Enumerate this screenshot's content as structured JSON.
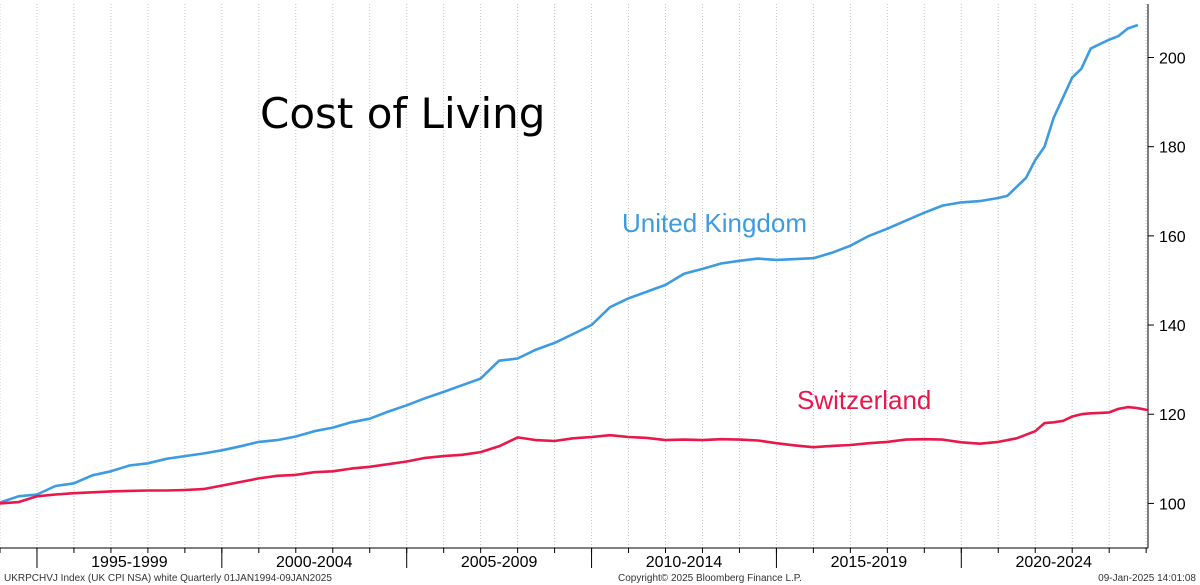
{
  "chart_data": {
    "type": "line",
    "title": "Cost of Living",
    "xlabel": "",
    "ylabel": "",
    "x_range": [
      1994.0,
      2025.05
    ],
    "ylim": [
      90,
      212
    ],
    "y_ticks": [
      100,
      120,
      140,
      160,
      180,
      200
    ],
    "x_category_labels": [
      {
        "label": "1995-1999",
        "from": 1995,
        "to": 2000
      },
      {
        "label": "2000-2004",
        "from": 2000,
        "to": 2005
      },
      {
        "label": "2005-2009",
        "from": 2005,
        "to": 2010
      },
      {
        "label": "2010-2014",
        "from": 2010,
        "to": 2015
      },
      {
        "label": "2015-2019",
        "from": 2015,
        "to": 2020
      },
      {
        "label": "2020-2024",
        "from": 2020,
        "to": 2025
      }
    ],
    "x_year_boundaries": [
      1995,
      2000,
      2005,
      2010,
      2015,
      2020
    ],
    "grid": "vertical-yearly",
    "series": [
      {
        "name": "United Kingdom",
        "color": "#3d9be2",
        "points": [
          [
            1994.0,
            100.2
          ],
          [
            1994.5,
            101.6
          ],
          [
            1995.0,
            102.0
          ],
          [
            1995.5,
            103.9
          ],
          [
            1996.0,
            104.5
          ],
          [
            1996.5,
            106.3
          ],
          [
            1997.0,
            107.2
          ],
          [
            1997.5,
            108.5
          ],
          [
            1998.0,
            109.0
          ],
          [
            1998.5,
            110.0
          ],
          [
            1999.0,
            110.6
          ],
          [
            1999.5,
            111.2
          ],
          [
            2000.0,
            111.9
          ],
          [
            2000.5,
            112.8
          ],
          [
            2001.0,
            113.8
          ],
          [
            2001.5,
            114.2
          ],
          [
            2002.0,
            115.0
          ],
          [
            2002.5,
            116.2
          ],
          [
            2003.0,
            117.0
          ],
          [
            2003.5,
            118.2
          ],
          [
            2004.0,
            119.0
          ],
          [
            2004.5,
            120.6
          ],
          [
            2005.0,
            122.0
          ],
          [
            2005.5,
            123.6
          ],
          [
            2006.0,
            125.0
          ],
          [
            2006.5,
            126.5
          ],
          [
            2007.0,
            128.0
          ],
          [
            2007.5,
            132.0
          ],
          [
            2008.0,
            132.5
          ],
          [
            2008.5,
            134.5
          ],
          [
            2009.0,
            136.0
          ],
          [
            2009.5,
            138.0
          ],
          [
            2010.0,
            140.0
          ],
          [
            2010.5,
            144.0
          ],
          [
            2011.0,
            146.0
          ],
          [
            2011.5,
            147.5
          ],
          [
            2012.0,
            149.0
          ],
          [
            2012.5,
            151.5
          ],
          [
            2013.0,
            152.6
          ],
          [
            2013.5,
            153.8
          ],
          [
            2014.0,
            154.4
          ],
          [
            2014.5,
            154.9
          ],
          [
            2015.0,
            154.6
          ],
          [
            2015.5,
            154.8
          ],
          [
            2016.0,
            155.0
          ],
          [
            2016.5,
            156.2
          ],
          [
            2017.0,
            157.8
          ],
          [
            2017.5,
            160.0
          ],
          [
            2018.0,
            161.6
          ],
          [
            2018.5,
            163.4
          ],
          [
            2019.0,
            165.2
          ],
          [
            2019.5,
            166.8
          ],
          [
            2020.0,
            167.5
          ],
          [
            2020.5,
            167.8
          ],
          [
            2021.0,
            168.5
          ],
          [
            2021.25,
            169.0
          ],
          [
            2021.5,
            171.0
          ],
          [
            2021.75,
            173.0
          ],
          [
            2022.0,
            177.0
          ],
          [
            2022.25,
            180.0
          ],
          [
            2022.5,
            186.5
          ],
          [
            2022.75,
            191.0
          ],
          [
            2023.0,
            195.5
          ],
          [
            2023.25,
            197.5
          ],
          [
            2023.5,
            202.0
          ],
          [
            2023.75,
            203.0
          ],
          [
            2024.0,
            204.0
          ],
          [
            2024.25,
            204.8
          ],
          [
            2024.5,
            206.5
          ],
          [
            2024.75,
            207.2
          ]
        ]
      },
      {
        "name": "Switzerland",
        "color": "#e8184a",
        "points": [
          [
            1994.0,
            100.0
          ],
          [
            1994.5,
            100.3
          ],
          [
            1995.0,
            101.6
          ],
          [
            1995.5,
            102.0
          ],
          [
            1996.0,
            102.3
          ],
          [
            1996.5,
            102.5
          ],
          [
            1997.0,
            102.7
          ],
          [
            1997.5,
            102.8
          ],
          [
            1998.0,
            102.9
          ],
          [
            1998.5,
            102.9
          ],
          [
            1999.0,
            103.0
          ],
          [
            1999.5,
            103.2
          ],
          [
            2000.0,
            104.0
          ],
          [
            2000.5,
            104.8
          ],
          [
            2001.0,
            105.6
          ],
          [
            2001.5,
            106.2
          ],
          [
            2002.0,
            106.4
          ],
          [
            2002.5,
            107.0
          ],
          [
            2003.0,
            107.2
          ],
          [
            2003.5,
            107.8
          ],
          [
            2004.0,
            108.2
          ],
          [
            2004.5,
            108.8
          ],
          [
            2005.0,
            109.4
          ],
          [
            2005.5,
            110.2
          ],
          [
            2006.0,
            110.6
          ],
          [
            2006.5,
            110.9
          ],
          [
            2007.0,
            111.5
          ],
          [
            2007.5,
            112.8
          ],
          [
            2008.0,
            114.8
          ],
          [
            2008.5,
            114.2
          ],
          [
            2009.0,
            114.0
          ],
          [
            2009.5,
            114.6
          ],
          [
            2010.0,
            114.9
          ],
          [
            2010.5,
            115.3
          ],
          [
            2011.0,
            114.9
          ],
          [
            2011.5,
            114.7
          ],
          [
            2012.0,
            114.2
          ],
          [
            2012.5,
            114.3
          ],
          [
            2013.0,
            114.2
          ],
          [
            2013.5,
            114.4
          ],
          [
            2014.0,
            114.3
          ],
          [
            2014.5,
            114.1
          ],
          [
            2015.0,
            113.5
          ],
          [
            2015.5,
            113.0
          ],
          [
            2016.0,
            112.6
          ],
          [
            2016.5,
            112.9
          ],
          [
            2017.0,
            113.1
          ],
          [
            2017.5,
            113.5
          ],
          [
            2018.0,
            113.8
          ],
          [
            2018.5,
            114.3
          ],
          [
            2019.0,
            114.4
          ],
          [
            2019.5,
            114.3
          ],
          [
            2020.0,
            113.7
          ],
          [
            2020.5,
            113.4
          ],
          [
            2021.0,
            113.8
          ],
          [
            2021.5,
            114.6
          ],
          [
            2022.0,
            116.2
          ],
          [
            2022.25,
            118.0
          ],
          [
            2022.5,
            118.2
          ],
          [
            2022.75,
            118.5
          ],
          [
            2023.0,
            119.5
          ],
          [
            2023.25,
            120.0
          ],
          [
            2023.5,
            120.2
          ],
          [
            2023.75,
            120.3
          ],
          [
            2024.0,
            120.4
          ],
          [
            2024.25,
            121.2
          ],
          [
            2024.5,
            121.6
          ],
          [
            2024.75,
            121.4
          ],
          [
            2025.0,
            121.0
          ]
        ]
      }
    ]
  },
  "footer": {
    "left": "UKRPCHVJ Index (UK CPI NSA) white  Quarterly 01JAN1994-09JAN2025",
    "center": "Copyright© 2025 Bloomberg Finance L.P.",
    "right": "09-Jan-2025 14:01:08"
  }
}
